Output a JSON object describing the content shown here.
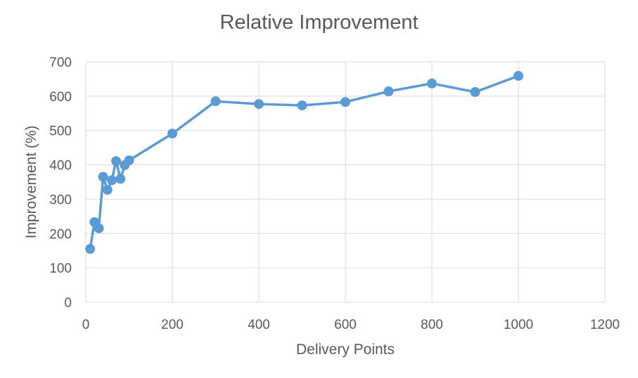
{
  "chart_data": {
    "type": "line",
    "title": "Relative Improvement",
    "xlabel": "Delivery Points",
    "ylabel": "Improvement (%)",
    "xlim": [
      0,
      1200
    ],
    "ylim": [
      0,
      700
    ],
    "xticks": [
      0,
      200,
      400,
      600,
      800,
      1000,
      1200
    ],
    "yticks": [
      0,
      100,
      200,
      300,
      400,
      500,
      600,
      700
    ],
    "grid": true,
    "legend": "none",
    "series": [
      {
        "color": "#5b9bd5",
        "points": [
          {
            "x": 10,
            "y": 155
          },
          {
            "x": 20,
            "y": 233
          },
          {
            "x": 30,
            "y": 215
          },
          {
            "x": 40,
            "y": 365
          },
          {
            "x": 50,
            "y": 327
          },
          {
            "x": 60,
            "y": 355
          },
          {
            "x": 70,
            "y": 411
          },
          {
            "x": 80,
            "y": 359
          },
          {
            "x": 90,
            "y": 399
          },
          {
            "x": 100,
            "y": 413
          },
          {
            "x": 200,
            "y": 491
          },
          {
            "x": 300,
            "y": 585
          },
          {
            "x": 400,
            "y": 577
          },
          {
            "x": 500,
            "y": 573
          },
          {
            "x": 600,
            "y": 583
          },
          {
            "x": 700,
            "y": 614
          },
          {
            "x": 800,
            "y": 637
          },
          {
            "x": 900,
            "y": 612
          },
          {
            "x": 1000,
            "y": 659
          }
        ]
      }
    ]
  }
}
